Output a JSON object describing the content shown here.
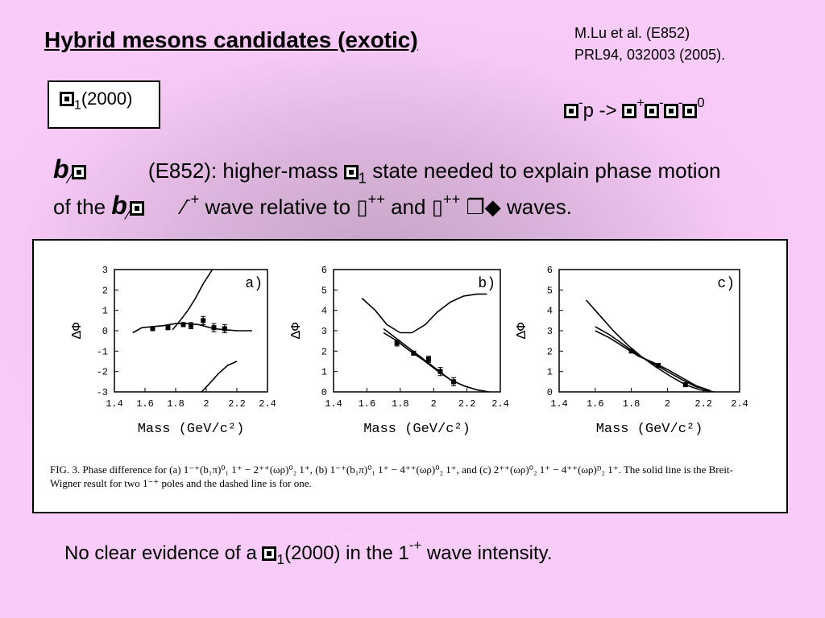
{
  "slide": {
    "title": "Hybrid mesons candidates (exotic)",
    "ref_line1": "M.Lu et al. (E852)",
    "ref_line2": "PRL94, 032003 (2005).",
    "state_box": {
      "sub": "1",
      "mass": "(2000)"
    },
    "line1": {
      "b": "b",
      "text_a": "(E852):  higher-mass ",
      "sub": "1",
      "text_b": " state needed to explain phase motion"
    },
    "line2": {
      "prefix": "of the ",
      "b": "b",
      "text_a": " wave relative to ",
      "text_b": " and ",
      "text_c": " waves."
    },
    "bottom": {
      "text_a": "No clear evidence of a ",
      "sub": "1",
      "text_b": "(2000) in the 1",
      "text_c": " wave intensity."
    },
    "caption": "FIG. 3.  Phase difference for (a) 1⁻⁺(b₁π)⁰₁ 1⁺ − 2⁺⁺(ωρ)⁰₂ 1⁺, (b) 1⁻⁺(b₁π)⁰₁ 1⁺ − 4⁺⁺(ωρ)⁰₂ 1⁺, and (c) 2⁺⁺(ωρ)⁰₂ 1⁺ − 4⁺⁺(ωρ)ᴰ₂ 1⁺. The solid line is the Breit-Wigner result for two 1⁻⁺ poles and the dashed line is for one."
  },
  "chart_data": [
    {
      "type": "scatter",
      "panel": "a)",
      "xlabel": "Mass (GeV/c²)",
      "ylabel": "ΔΦ",
      "xlim": [
        1.4,
        2.4
      ],
      "ylim": [
        -3,
        3
      ],
      "xticks": [
        "1.4",
        "1.6",
        "1.8",
        "2",
        "2.2",
        "2.4"
      ],
      "xtickvals": [
        1.4,
        1.6,
        1.8,
        2.0,
        2.2,
        2.4
      ],
      "yticks": [
        "-3",
        "-2",
        "-1",
        "0",
        "1",
        "2",
        "3"
      ],
      "ytickvals": [
        -3,
        -2,
        -1,
        0,
        1,
        2,
        3
      ],
      "points": [
        {
          "x": 1.65,
          "y": 0.1,
          "err": 0.05
        },
        {
          "x": 1.75,
          "y": 0.15,
          "err": 0.1
        },
        {
          "x": 1.85,
          "y": 0.3,
          "err": 0.1
        },
        {
          "x": 1.9,
          "y": 0.25,
          "err": 0.15
        },
        {
          "x": 1.98,
          "y": 0.5,
          "err": 0.2
        },
        {
          "x": 2.05,
          "y": 0.15,
          "err": 0.2
        },
        {
          "x": 2.12,
          "y": 0.1,
          "err": 0.2
        }
      ],
      "curves": [
        {
          "x": [
            1.52,
            1.58,
            1.65,
            1.72,
            1.8,
            1.87,
            1.95,
            2.0,
            2.05,
            2.12,
            2.2,
            2.3
          ],
          "y": [
            -0.1,
            0.15,
            0.2,
            0.25,
            0.35,
            0.35,
            0.3,
            0.2,
            0.1,
            0.05,
            0.0,
            0.0
          ]
        },
        {
          "x": [
            1.78,
            1.83,
            1.88,
            1.93,
            1.98,
            2.04
          ],
          "y": [
            0.05,
            0.5,
            1.0,
            1.6,
            2.3,
            3.0
          ]
        },
        {
          "x": [
            1.97,
            2.02,
            2.08,
            2.14,
            2.2
          ],
          "y": [
            -3.0,
            -2.6,
            -2.1,
            -1.7,
            -1.5
          ]
        }
      ]
    },
    {
      "type": "scatter",
      "panel": "b)",
      "xlabel": "Mass (GeV/c²)",
      "ylabel": "ΔΦ",
      "xlim": [
        1.4,
        2.4
      ],
      "ylim": [
        0,
        6
      ],
      "xticks": [
        "1.4",
        "1.6",
        "1.8",
        "2",
        "2.2",
        "2.4"
      ],
      "xtickvals": [
        1.4,
        1.6,
        1.8,
        2.0,
        2.2,
        2.4
      ],
      "yticks": [
        "0",
        "1",
        "2",
        "3",
        "4",
        "5",
        "6"
      ],
      "ytickvals": [
        0,
        1,
        2,
        3,
        4,
        5,
        6
      ],
      "points": [
        {
          "x": 1.78,
          "y": 2.4,
          "err": 0.15
        },
        {
          "x": 1.88,
          "y": 1.9,
          "err": 0.1
        },
        {
          "x": 1.97,
          "y": 1.6,
          "err": 0.15
        },
        {
          "x": 2.04,
          "y": 1.0,
          "err": 0.2
        },
        {
          "x": 2.12,
          "y": 0.5,
          "err": 0.2
        }
      ],
      "curves": [
        {
          "x": [
            1.57,
            1.65,
            1.72,
            1.8,
            1.87,
            1.95,
            2.02,
            2.1,
            2.18,
            2.26,
            2.32
          ],
          "y": [
            4.6,
            4.0,
            3.3,
            2.9,
            2.9,
            3.3,
            3.9,
            4.4,
            4.7,
            4.8,
            4.8
          ]
        },
        {
          "x": [
            1.7,
            1.78,
            1.86,
            1.94,
            2.02,
            2.1,
            2.18,
            2.26,
            2.33
          ],
          "y": [
            3.1,
            2.6,
            2.1,
            1.6,
            1.1,
            0.6,
            0.3,
            0.1,
            0.0
          ]
        },
        {
          "x": [
            1.7,
            1.78,
            1.86,
            1.94,
            2.02,
            2.1,
            2.18,
            2.26,
            2.33
          ],
          "y": [
            2.9,
            2.5,
            2.0,
            1.55,
            1.05,
            0.6,
            0.3,
            0.1,
            0.0
          ]
        }
      ]
    },
    {
      "type": "line",
      "panel": "c)",
      "xlabel": "Mass (GeV/c²)",
      "ylabel": "ΔΦ",
      "xlim": [
        1.4,
        2.4
      ],
      "ylim": [
        0,
        6
      ],
      "xticks": [
        "1.4",
        "1.6",
        "1.8",
        "2",
        "2.2",
        "2.4"
      ],
      "xtickvals": [
        1.4,
        1.6,
        1.8,
        2.0,
        2.2,
        2.4
      ],
      "yticks": [
        "0",
        "1",
        "2",
        "3",
        "4",
        "5",
        "6"
      ],
      "ytickvals": [
        0,
        1,
        2,
        3,
        4,
        5,
        6
      ],
      "points": [
        {
          "x": 1.8,
          "y": 2.0,
          "err": 0.0
        },
        {
          "x": 1.95,
          "y": 1.3,
          "err": 0.0
        },
        {
          "x": 2.1,
          "y": 0.35,
          "err": 0.0
        }
      ],
      "curves": [
        {
          "x": [
            1.55,
            1.62,
            1.7,
            1.78,
            1.86,
            1.94,
            2.02,
            2.1,
            2.18,
            2.26
          ],
          "y": [
            4.5,
            3.8,
            3.0,
            2.3,
            1.7,
            1.2,
            0.75,
            0.35,
            0.1,
            0.0
          ]
        },
        {
          "x": [
            1.6,
            1.68,
            1.76,
            1.84,
            1.92,
            2.0,
            2.08,
            2.16,
            2.24
          ],
          "y": [
            3.2,
            2.8,
            2.3,
            1.8,
            1.4,
            1.0,
            0.6,
            0.25,
            0.05
          ]
        },
        {
          "x": [
            1.6,
            1.68,
            1.76,
            1.84,
            1.92,
            2.0,
            2.08,
            2.16,
            2.24
          ],
          "y": [
            3.0,
            2.65,
            2.2,
            1.75,
            1.45,
            1.1,
            0.7,
            0.3,
            0.05
          ]
        }
      ]
    }
  ]
}
